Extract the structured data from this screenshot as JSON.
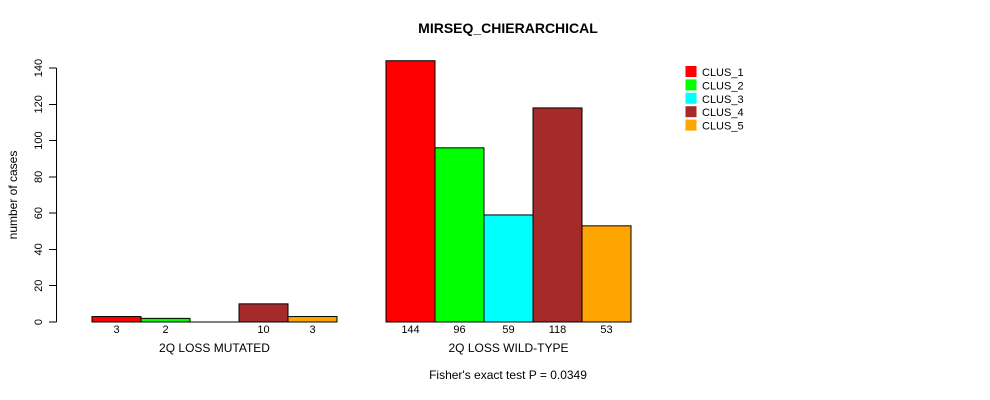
{
  "chart_data": {
    "type": "bar",
    "title": "MIRSEQ_CHIERARCHICAL",
    "xlabel": "",
    "ylabel": "number of cases",
    "ylim": [
      0,
      140
    ],
    "yticks": [
      0,
      20,
      40,
      60,
      80,
      100,
      120,
      140
    ],
    "grid": false,
    "legend_position": "right",
    "categories": [
      "2Q LOSS MUTATED",
      "2Q LOSS WILD-TYPE"
    ],
    "series": [
      {
        "name": "CLUS_1",
        "color": "#FF0000",
        "values": [
          3,
          144
        ]
      },
      {
        "name": "CLUS_2",
        "color": "#00FF00",
        "values": [
          2,
          96
        ]
      },
      {
        "name": "CLUS_3",
        "color": "#00FFFF",
        "values": [
          0,
          59
        ]
      },
      {
        "name": "CLUS_4",
        "color": "#A52A2A",
        "values": [
          10,
          118
        ]
      },
      {
        "name": "CLUS_5",
        "color": "#FFA500",
        "values": [
          3,
          53
        ]
      }
    ],
    "bar_value_labels": {
      "2Q LOSS MUTATED": [
        "3",
        "2",
        "",
        "10",
        "3"
      ],
      "2Q LOSS WILD-TYPE": [
        "144",
        "96",
        "59",
        "118",
        "53"
      ]
    },
    "annotation": "Fisher's exact test P = 0.0349",
    "axis_color": "#000000",
    "bar_border_color": "#000000"
  }
}
